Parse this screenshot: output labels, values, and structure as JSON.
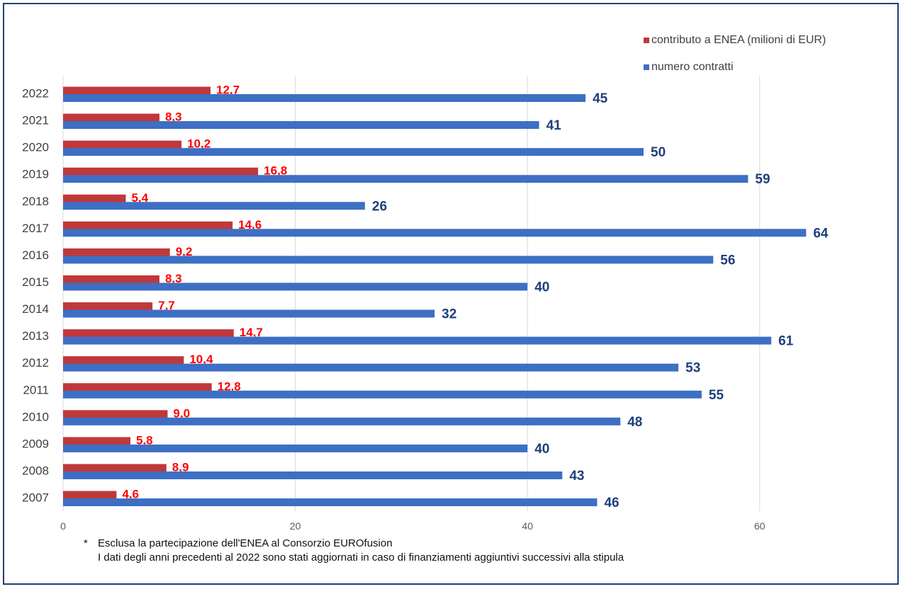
{
  "chart_data": {
    "type": "bar",
    "orientation": "horizontal",
    "categories": [
      "2022",
      "2021",
      "2020",
      "2019",
      "2018",
      "2017",
      "2016",
      "2015",
      "2014",
      "2013",
      "2012",
      "2011",
      "2010",
      "2009",
      "2008",
      "2007"
    ],
    "series": [
      {
        "name": "contributo a ENEA (milioni di EUR)",
        "color": "#c0383a",
        "label_color": "#ff0000",
        "values": [
          12.7,
          8.3,
          10.2,
          16.8,
          5.4,
          14.6,
          9.2,
          8.3,
          7.7,
          14.7,
          10.4,
          12.8,
          9.0,
          5.8,
          8.9,
          4.6
        ],
        "labels": [
          "12,7",
          "8,3",
          "10,2",
          "16,8",
          "5,4",
          "14,6",
          "9,2",
          "8,3",
          "7,7",
          "14,7",
          "10,4",
          "12,8",
          "9,0",
          "5,8",
          "8,9",
          "4,6"
        ]
      },
      {
        "name": "numero contratti",
        "color": "#3d6fc4",
        "label_color": "#1f3f7a",
        "values": [
          45,
          41,
          50,
          59,
          26,
          64,
          56,
          40,
          32,
          61,
          53,
          55,
          48,
          40,
          43,
          46
        ],
        "labels": [
          "45",
          "41",
          "50",
          "59",
          "26",
          "64",
          "56",
          "40",
          "32",
          "61",
          "53",
          "55",
          "48",
          "40",
          "43",
          "46"
        ]
      }
    ],
    "xlim": [
      0,
      66
    ],
    "x_ticks": [
      0,
      20,
      40,
      60
    ],
    "x_tick_labels": [
      "0",
      "20",
      "40",
      "60"
    ],
    "grid": "vertical",
    "legend_position": "top-right"
  },
  "footnote": {
    "star": "*",
    "line1": "Esclusa la partecipazione dell'ENEA  al Consorzio EUROfusion",
    "line2": "I dati degli anni precedenti al 2022 sono stati aggiornati  in caso di finanziamenti  aggiuntivi  successivi alla stipula"
  }
}
